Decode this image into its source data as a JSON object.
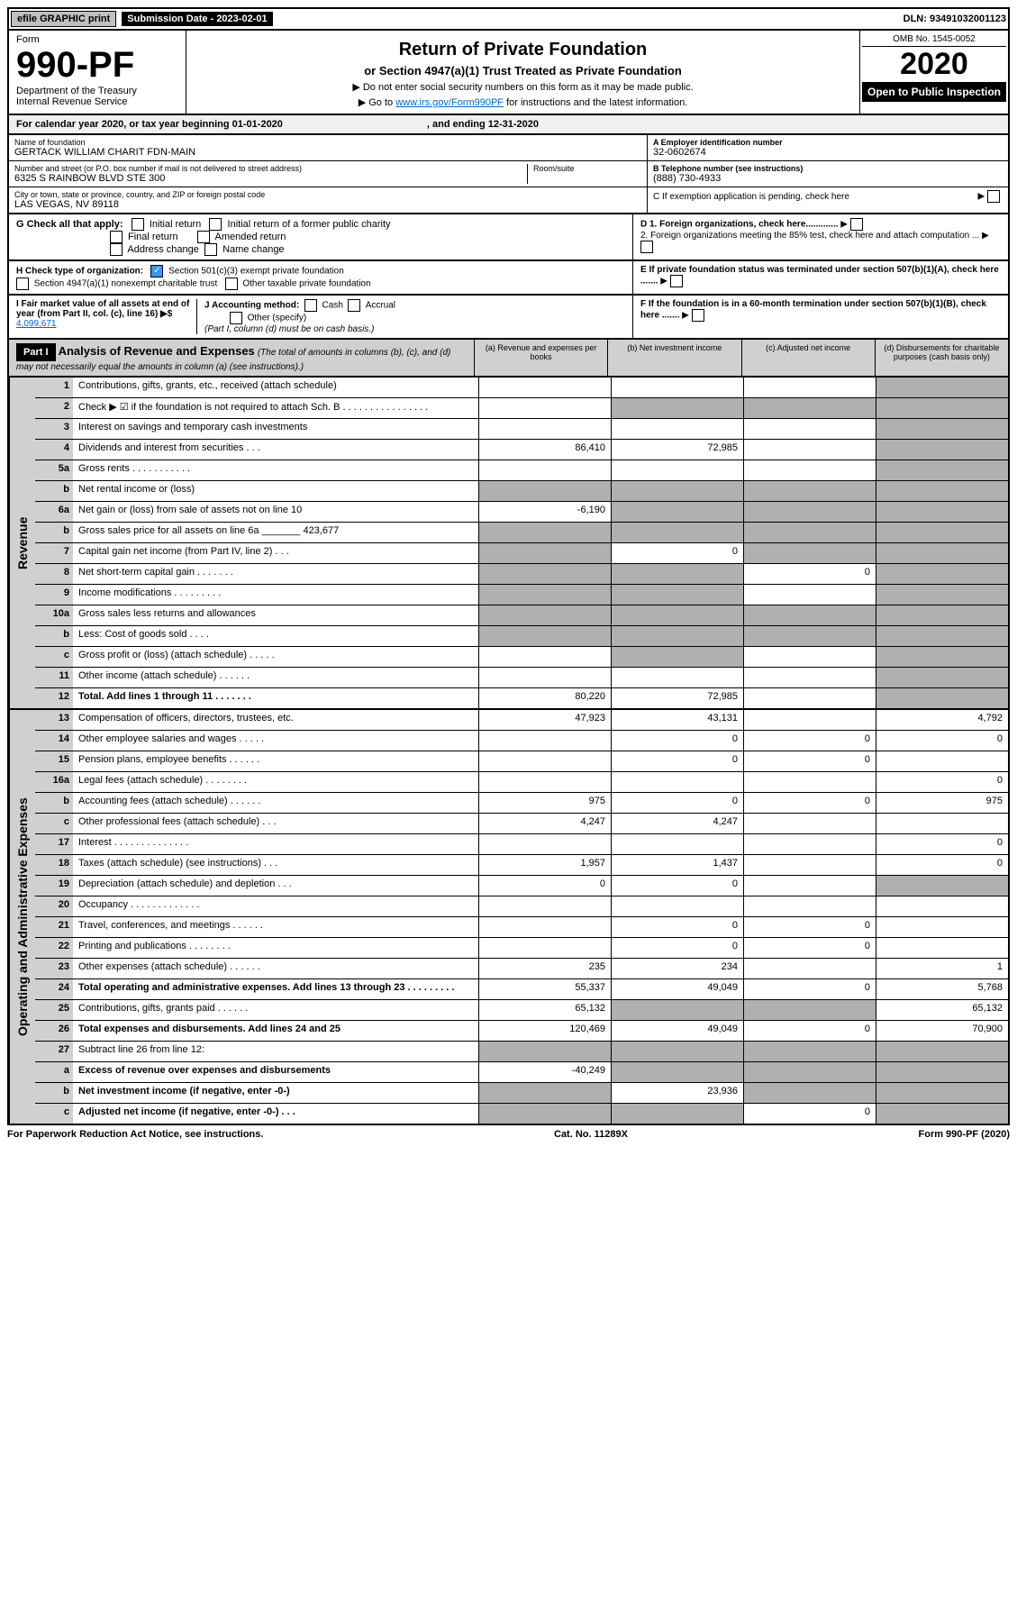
{
  "topbar": {
    "efile_label": "efile GRAPHIC print",
    "submission_label": "Submission Date - 2023-02-01",
    "dln_label": "DLN: 93491032001123"
  },
  "header": {
    "form_label": "Form",
    "form_number": "990-PF",
    "dept": "Department of the Treasury",
    "irs": "Internal Revenue Service",
    "title": "Return of Private Foundation",
    "subtitle": "or Section 4947(a)(1) Trust Treated as Private Foundation",
    "note1": "▶ Do not enter social security numbers on this form as it may be made public.",
    "note2_prefix": "▶ Go to ",
    "note2_link": "www.irs.gov/Form990PF",
    "note2_suffix": " for instructions and the latest information.",
    "omb": "OMB No. 1545-0052",
    "year": "2020",
    "inspection": "Open to Public Inspection"
  },
  "calendar": {
    "text": "For calendar year 2020, or tax year beginning 01-01-2020",
    "ending": ", and ending 12-31-2020"
  },
  "foundation": {
    "name_label": "Name of foundation",
    "name": "GERTACK WILLIAM CHARIT FDN-MAIN",
    "address_label": "Number and street (or P.O. box number if mail is not delivered to street address)",
    "address": "6325 S RAINBOW BLVD STE 300",
    "room_label": "Room/suite",
    "city_label": "City or town, state or province, country, and ZIP or foreign postal code",
    "city": "LAS VEGAS, NV  89118",
    "ein_label": "A Employer identification number",
    "ein": "32-0602674",
    "phone_label": "B Telephone number (see instructions)",
    "phone": "(888) 730-4933",
    "c_label": "C If exemption application is pending, check here",
    "d1_label": "D 1. Foreign organizations, check here.............",
    "d2_label": "2. Foreign organizations meeting the 85% test, check here and attach computation ...",
    "e_label": "E If private foundation status was terminated under section 507(b)(1)(A), check here .......",
    "f_label": "F If the foundation is in a 60-month termination under section 507(b)(1)(B), check here ......."
  },
  "g": {
    "label": "G Check all that apply:",
    "initial": "Initial return",
    "initial_former": "Initial return of a former public charity",
    "final": "Final return",
    "amended": "Amended return",
    "address": "Address change",
    "name_change": "Name change"
  },
  "h": {
    "label": "H Check type of organization:",
    "501c3": "Section 501(c)(3) exempt private foundation",
    "4947": "Section 4947(a)(1) nonexempt charitable trust",
    "other_taxable": "Other taxable private foundation"
  },
  "i": {
    "label": "I Fair market value of all assets at end of year (from Part II, col. (c), line 16) ▶$",
    "value": "4,099,671"
  },
  "j": {
    "label": "J Accounting method:",
    "cash": "Cash",
    "accrual": "Accrual",
    "other": "Other (specify)",
    "note": "(Part I, column (d) must be on cash basis.)"
  },
  "part1": {
    "label": "Part I",
    "title": "Analysis of Revenue and Expenses",
    "note": "(The total of amounts in columns (b), (c), and (d) may not necessarily equal the amounts in column (a) (see instructions).)",
    "col_a": "(a) Revenue and expenses per books",
    "col_b": "(b) Net investment income",
    "col_c": "(c) Adjusted net income",
    "col_d": "(d) Disbursements for charitable purposes (cash basis only)"
  },
  "sidelabels": {
    "revenue": "Revenue",
    "operating": "Operating and Administrative Expenses"
  },
  "rows": [
    {
      "num": "1",
      "label": "Contributions, gifts, grants, etc., received (attach schedule)",
      "a": "",
      "b": "",
      "c": "",
      "d": "",
      "cs": false,
      "ds": true
    },
    {
      "num": "2",
      "label": "Check ▶ ☑ if the foundation is not required to attach Sch. B   .  .  .  .  .  .  .  .  .  .  .  .  .  .  .  .",
      "a": "",
      "b": "",
      "c": "",
      "d": "",
      "bs": true,
      "cs": true,
      "ds": true
    },
    {
      "num": "3",
      "label": "Interest on savings and temporary cash investments",
      "a": "",
      "b": "",
      "c": "",
      "d": "",
      "ds": true
    },
    {
      "num": "4",
      "label": "Dividends and interest from securities   .   .   .",
      "a": "86,410",
      "b": "72,985",
      "c": "",
      "d": "",
      "ds": true
    },
    {
      "num": "5a",
      "label": "Gross rents   .   .   .   .   .   .   .   .   .   .   .",
      "a": "",
      "b": "",
      "c": "",
      "d": "",
      "ds": true
    },
    {
      "num": "b",
      "label": "Net rental income or (loss)",
      "a": "",
      "b": "",
      "c": "",
      "d": "",
      "as": true,
      "bs": true,
      "cs": true,
      "ds": true
    },
    {
      "num": "6a",
      "label": "Net gain or (loss) from sale of assets not on line 10",
      "a": "-6,190",
      "b": "",
      "c": "",
      "d": "",
      "bs": true,
      "cs": true,
      "ds": true
    },
    {
      "num": "b",
      "label": "Gross sales price for all assets on line 6a _______ 423,677",
      "a": "",
      "b": "",
      "c": "",
      "d": "",
      "as": true,
      "bs": true,
      "cs": true,
      "ds": true
    },
    {
      "num": "7",
      "label": "Capital gain net income (from Part IV, line 2)   .   .   .",
      "a": "",
      "b": "0",
      "c": "",
      "d": "",
      "as": true,
      "cs": true,
      "ds": true
    },
    {
      "num": "8",
      "label": "Net short-term capital gain   .   .   .   .   .   .   .",
      "a": "",
      "b": "",
      "c": "0",
      "d": "",
      "as": true,
      "bs": true,
      "ds": true
    },
    {
      "num": "9",
      "label": "Income modifications   .   .   .   .   .   .   .   .   .",
      "a": "",
      "b": "",
      "c": "",
      "d": "",
      "as": true,
      "bs": true,
      "ds": true
    },
    {
      "num": "10a",
      "label": "Gross sales less returns and allowances",
      "a": "",
      "b": "",
      "c": "",
      "d": "",
      "as": true,
      "bs": true,
      "cs": true,
      "ds": true
    },
    {
      "num": "b",
      "label": "Less: Cost of goods sold   .   .   .   .",
      "a": "",
      "b": "",
      "c": "",
      "d": "",
      "as": true,
      "bs": true,
      "cs": true,
      "ds": true
    },
    {
      "num": "c",
      "label": "Gross profit or (loss) (attach schedule)   .   .   .   .   .",
      "a": "",
      "b": "",
      "c": "",
      "d": "",
      "bs": true,
      "ds": true
    },
    {
      "num": "11",
      "label": "Other income (attach schedule)   .   .   .   .   .   .",
      "a": "",
      "b": "",
      "c": "",
      "d": "",
      "ds": true
    },
    {
      "num": "12",
      "label": "Total. Add lines 1 through 11   .   .   .   .   .   .   .",
      "a": "80,220",
      "b": "72,985",
      "c": "",
      "d": "",
      "bold": true,
      "ds": true
    }
  ],
  "rows2": [
    {
      "num": "13",
      "label": "Compensation of officers, directors, trustees, etc.",
      "a": "47,923",
      "b": "43,131",
      "c": "",
      "d": "4,792"
    },
    {
      "num": "14",
      "label": "Other employee salaries and wages   .   .   .   .   .",
      "a": "",
      "b": "0",
      "c": "0",
      "d": "0"
    },
    {
      "num": "15",
      "label": "Pension plans, employee benefits   .   .   .   .   .   .",
      "a": "",
      "b": "0",
      "c": "0",
      "d": ""
    },
    {
      "num": "16a",
      "label": "Legal fees (attach schedule)  .   .   .   .   .   .   .   .",
      "a": "",
      "b": "",
      "c": "",
      "d": "0"
    },
    {
      "num": "b",
      "label": "Accounting fees (attach schedule)  .   .   .   .   .   .",
      "a": "975",
      "b": "0",
      "c": "0",
      "d": "975"
    },
    {
      "num": "c",
      "label": "Other professional fees (attach schedule)   .   .   .",
      "a": "4,247",
      "b": "4,247",
      "c": "",
      "d": ""
    },
    {
      "num": "17",
      "label": "Interest  .  .  .  .  .  .  .  .  .  .  .  .  .  .",
      "a": "",
      "b": "",
      "c": "",
      "d": "0"
    },
    {
      "num": "18",
      "label": "Taxes (attach schedule) (see instructions)   .   .   .",
      "a": "1,957",
      "b": "1,437",
      "c": "",
      "d": "0"
    },
    {
      "num": "19",
      "label": "Depreciation (attach schedule) and depletion   .   .   .",
      "a": "0",
      "b": "0",
      "c": "",
      "d": "",
      "ds": true
    },
    {
      "num": "20",
      "label": "Occupancy  .  .  .  .  .  .  .  .  .  .  .  .  .",
      "a": "",
      "b": "",
      "c": "",
      "d": ""
    },
    {
      "num": "21",
      "label": "Travel, conferences, and meetings  .   .   .   .   .   .",
      "a": "",
      "b": "0",
      "c": "0",
      "d": ""
    },
    {
      "num": "22",
      "label": "Printing and publications  .   .   .   .   .   .   .   .",
      "a": "",
      "b": "0",
      "c": "0",
      "d": ""
    },
    {
      "num": "23",
      "label": "Other expenses (attach schedule)  .   .   .   .   .   .",
      "a": "235",
      "b": "234",
      "c": "",
      "d": "1"
    },
    {
      "num": "24",
      "label": "Total operating and administrative expenses. Add lines 13 through 23   .   .   .   .   .   .   .   .   .",
      "a": "55,337",
      "b": "49,049",
      "c": "0",
      "d": "5,768",
      "bold": true
    },
    {
      "num": "25",
      "label": "Contributions, gifts, grants paid   .   .   .   .   .   .",
      "a": "65,132",
      "b": "",
      "c": "",
      "d": "65,132",
      "bs": true,
      "cs": true
    },
    {
      "num": "26",
      "label": "Total expenses and disbursements. Add lines 24 and 25",
      "a": "120,469",
      "b": "49,049",
      "c": "0",
      "d": "70,900",
      "bold": true
    },
    {
      "num": "27",
      "label": "Subtract line 26 from line 12:",
      "a": "",
      "b": "",
      "c": "",
      "d": "",
      "as": true,
      "bs": true,
      "cs": true,
      "ds": true
    },
    {
      "num": "a",
      "label": "Excess of revenue over expenses and disbursements",
      "a": "-40,249",
      "b": "",
      "c": "",
      "d": "",
      "bold": true,
      "bs": true,
      "cs": true,
      "ds": true
    },
    {
      "num": "b",
      "label": "Net investment income (if negative, enter -0-)",
      "a": "",
      "b": "23,936",
      "c": "",
      "d": "",
      "bold": true,
      "as": true,
      "cs": true,
      "ds": true
    },
    {
      "num": "c",
      "label": "Adjusted net income (if negative, enter -0-)   .   .   .",
      "a": "",
      "b": "",
      "c": "0",
      "d": "",
      "bold": true,
      "as": true,
      "bs": true,
      "ds": true
    }
  ],
  "footer": {
    "left": "For Paperwork Reduction Act Notice, see instructions.",
    "center": "Cat. No. 11289X",
    "right": "Form 990-PF (2020)"
  }
}
